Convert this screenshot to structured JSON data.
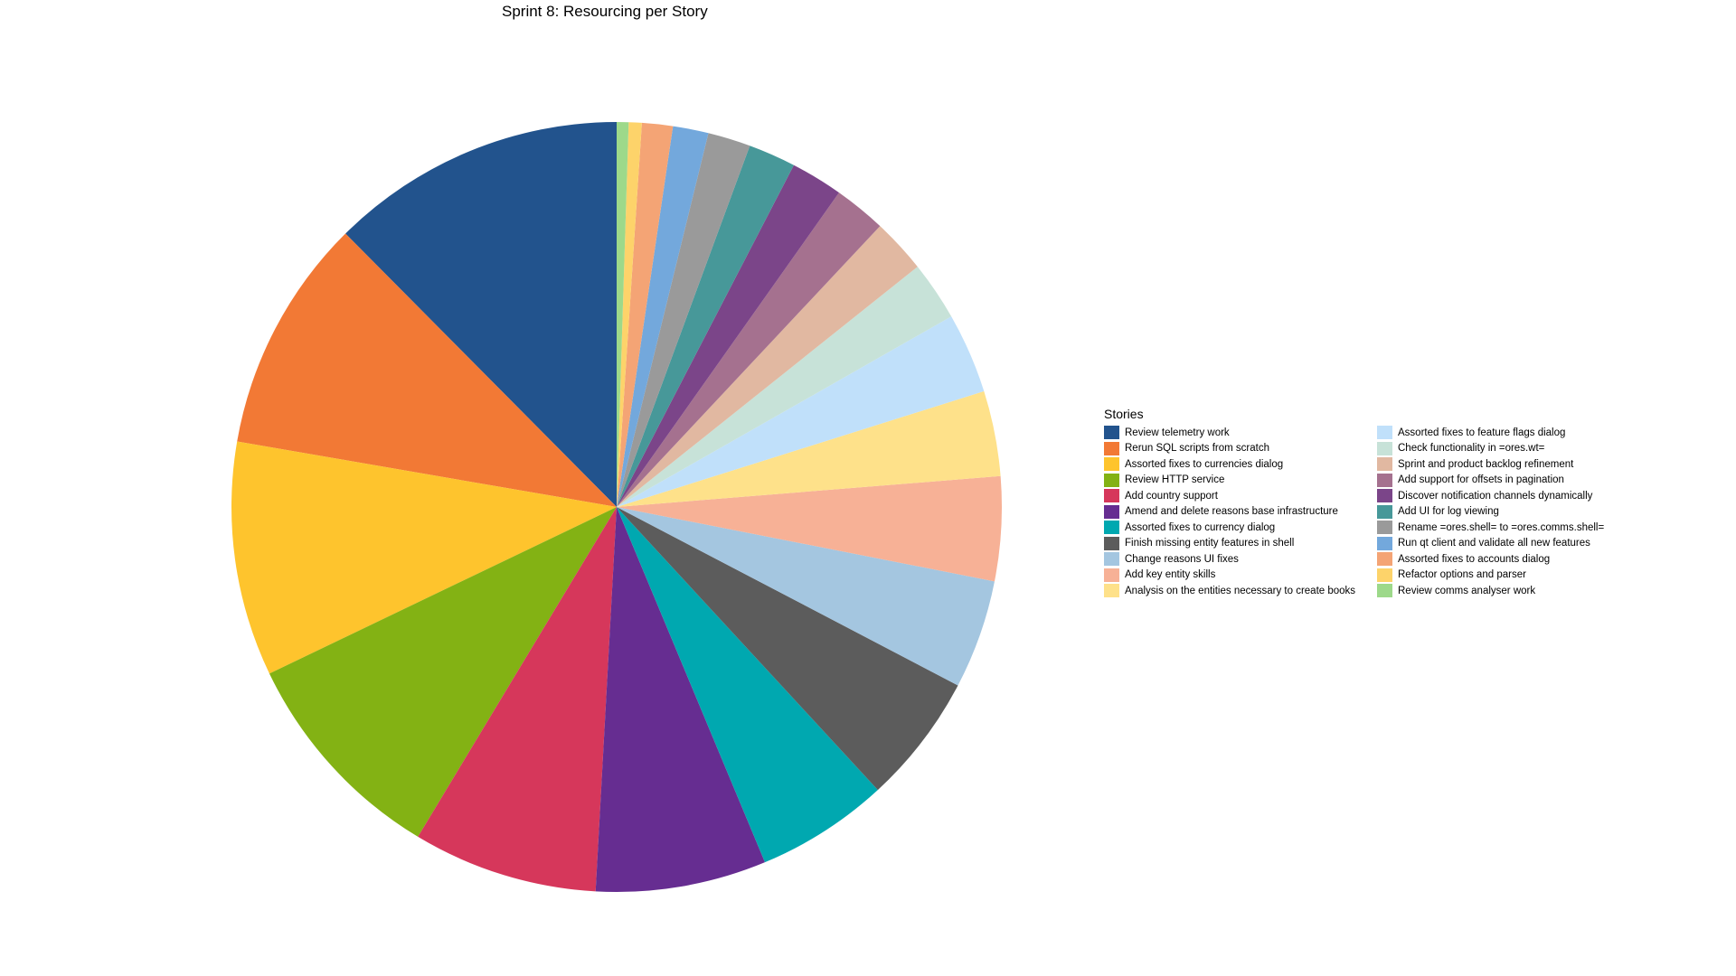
{
  "chart_data": {
    "type": "pie",
    "title": "Sprint 8: Resourcing per Story",
    "legend_title": "Stories",
    "legend_position": "right",
    "start": "top, clockwise from 12 o'clock the smallest slices",
    "slices": [
      {
        "label": "Review telemetry work",
        "value": 12.5,
        "color": "#22538d"
      },
      {
        "label": "Rerun SQL scripts from scratch",
        "value": 9.9,
        "color": "#f27935"
      },
      {
        "label": "Assorted fixes to currencies dialog",
        "value": 9.9,
        "color": "#fec42d"
      },
      {
        "label": "Review HTTP service",
        "value": 9.3,
        "color": "#83b214"
      },
      {
        "label": "Add country support",
        "value": 7.8,
        "color": "#d6375b"
      },
      {
        "label": "Amend and delete reasons base infrastructure",
        "value": 7.2,
        "color": "#662d91"
      },
      {
        "label": "Assorted fixes to currency dialog",
        "value": 5.6,
        "color": "#00a8b0"
      },
      {
        "label": "Finish missing entity features in shell",
        "value": 5.5,
        "color": "#5c5c5c"
      },
      {
        "label": "Change reasons UI fixes",
        "value": 4.6,
        "color": "#a4c6e0"
      },
      {
        "label": "Add key entity skills",
        "value": 4.4,
        "color": "#f7b196"
      },
      {
        "label": "Analysis on the entities necessary to create books",
        "value": 3.6,
        "color": "#fee18a"
      },
      {
        "label": "Assorted fixes to feature flags dialog",
        "value": 3.4,
        "color": "#c0e0fa"
      },
      {
        "label": "Check functionality in =ores.wt=",
        "value": 2.5,
        "color": "#c7e2d8"
      },
      {
        "label": "Sprint and product backlog refinement",
        "value": 2.3,
        "color": "#e1b8a1"
      },
      {
        "label": "Add support for offsets in pagination",
        "value": 2.2,
        "color": "#a5718f"
      },
      {
        "label": "Discover notification channels dynamically",
        "value": 2.2,
        "color": "#7b4589"
      },
      {
        "label": "Add UI for log viewing",
        "value": 2.0,
        "color": "#479899"
      },
      {
        "label": "Rename =ores.shell= to =ores.comms.shell=",
        "value": 1.8,
        "color": "#9a9a9a"
      },
      {
        "label": "Run qt client and validate all new features",
        "value": 1.5,
        "color": "#73a8dc"
      },
      {
        "label": "Assorted fixes to accounts dialog",
        "value": 1.3,
        "color": "#f4a475"
      },
      {
        "label": "Refactor options and parser",
        "value": 0.55,
        "color": "#fdd36a"
      },
      {
        "label": "Review comms analyser work",
        "value": 0.5,
        "color": "#9dd98a"
      }
    ]
  }
}
